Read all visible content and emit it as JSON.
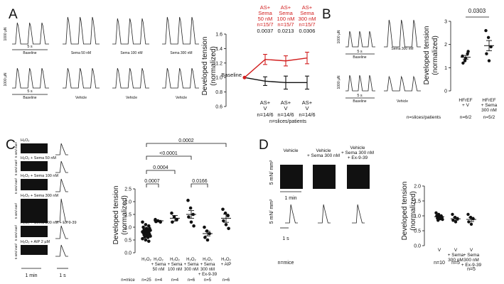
{
  "panels": {
    "A": {
      "label": "A",
      "scale_y": "1000 µN",
      "scale_x": "5 s",
      "row1_labels": [
        "Baseline",
        "Sema 50 nM",
        "Sema 100 nM",
        "Sema 300 nM"
      ],
      "row2_labels": [
        "Baseline",
        "Vehicle",
        "Vehicle",
        "Vehicle"
      ],
      "sema_group": {
        "line1": "AS+",
        "line2": "Sema"
      },
      "sema_doses": [
        "50 nM",
        "100 nM",
        "300 nM"
      ],
      "sema_n": [
        "n=15/7",
        "n=15/7",
        "n=15/7"
      ],
      "p_values": [
        "0.0037",
        "0.0213",
        "0.0306"
      ],
      "v_group": {
        "line1": "AS+",
        "line2": "V"
      },
      "v_n": [
        "n=14/6",
        "n=14/6",
        "n=14/6"
      ],
      "baseline_label": "Baseline",
      "footnote": "n=slices/patients",
      "ylabel_1": "Developed tension",
      "ylabel_2": "(normalized)",
      "yticks": [
        "0.6",
        "0.8",
        "1.0",
        "1.2",
        "1.4",
        "1.6"
      ]
    },
    "B": {
      "label": "B",
      "scale_y": "1000 µN",
      "scale_x": "5 s",
      "row1_labels": [
        "Baseline",
        "Sema 300 nM"
      ],
      "row2_labels": [
        "Baseline",
        "Vehicle"
      ],
      "p_value": "0.0303",
      "ylabel_1": "Developed tension",
      "ylabel_2": "(normalized)",
      "yticks": [
        "0",
        "1",
        "2",
        "3"
      ],
      "xlabels": [
        {
          "l1": "HFrEF",
          "l2": "+ V",
          "l3": ""
        },
        {
          "l1": "HFrEF",
          "l2": "+ Sema",
          "l3": "300 nM"
        }
      ],
      "footer": "n=slices/patients",
      "n": [
        "n=6/2",
        "n=5/2"
      ]
    },
    "C": {
      "label": "C",
      "scale_y": "5 mN/ mm²",
      "scale_x_left": "1 min",
      "scale_x_right": "1 s",
      "trace_labels": [
        "H₂O₂",
        "H₂O₂ + Sema 50 nM",
        "H₂O₂ + Sema 100 nM",
        "H₂O₂ + Sema 300 nM",
        "H₂O₂ + Sema 300 nM + Ex-9-39",
        "H₂O₂ + AIP 2 µM"
      ],
      "p_values": [
        "0.0002",
        "<0.0001",
        "0.0004",
        "0.0007",
        "0.0166"
      ],
      "ylabel_1": "Developed tension",
      "ylabel_2": "(normalized)",
      "yticks": [
        "0.0",
        "0.5",
        "1.0",
        "1.5",
        "2.0",
        "2.5"
      ],
      "xlabels": [
        {
          "l1": "H₂O₂",
          "l2": "",
          "l3": "",
          "l4": ""
        },
        {
          "l1": "H₂O₂",
          "l2": "+ Sema",
          "l3": "50 nM",
          "l4": ""
        },
        {
          "l1": "H₂O₂",
          "l2": "+ Sema",
          "l3": "100 nM",
          "l4": ""
        },
        {
          "l1": "H₂O₂",
          "l2": "+ Sema",
          "l3": "300 nM",
          "l4": ""
        },
        {
          "l1": "H₂O₂",
          "l2": "+ Sema",
          "l3": "300 nM",
          "l4": "+ Ex-9-39"
        },
        {
          "l1": "H₂O₂",
          "l2": "+ AIP",
          "l3": "",
          "l4": ""
        }
      ],
      "n_prefix": "n=mice",
      "n": [
        "n=25",
        "n=4",
        "n=4",
        "n=6",
        "n=5",
        "n=6"
      ]
    },
    "D": {
      "label": "D",
      "trace_headers": [
        {
          "l1": "Vehicle",
          "l2": "",
          "l3": ""
        },
        {
          "l1": "Vehicle",
          "l2": "+ Sema 300 nM",
          "l3": ""
        },
        {
          "l1": "Vehicle",
          "l2": "+ Sema 300 nM",
          "l3": "+ Ex-9-39"
        }
      ],
      "scale_y_top": "5 mN/ mm²",
      "scale_y_bottom": "5 mN/ mm²",
      "scale_x_top": "1 min",
      "scale_x_bottom": "1 s",
      "ylabel_1": "Developed tension",
      "ylabel_2": "(normalized)",
      "yticks": [
        "0.0",
        "0.5",
        "1.0",
        "1.5",
        "2.0"
      ],
      "xlabels": [
        {
          "l1": "V",
          "l2": "",
          "l3": "",
          "l4": ""
        },
        {
          "l1": "V",
          "l2": "+ Sema",
          "l3": "300 nM",
          "l4": ""
        },
        {
          "l1": "V",
          "l2": "+ Sema",
          "l3": "300 nM",
          "l4": "+ Ex-9-39"
        }
      ],
      "n_prefix": "n=mice",
      "n": [
        "n=10",
        "n=5",
        "n=5"
      ]
    }
  },
  "chart_data": [
    {
      "panel": "A",
      "type": "line",
      "x": [
        "Baseline",
        "50 nM",
        "100 nM",
        "300 nM"
      ],
      "ylim": [
        0.6,
        1.6
      ],
      "series": [
        {
          "values": [
            1.0,
            1.25,
            1.23,
            1.27
          ],
          "errors": [
            0,
            0.07,
            0.07,
            0.08
          ],
          "color": "#d21f1f"
        },
        {
          "values": [
            1.0,
            0.95,
            0.93,
            0.93
          ],
          "errors": [
            0,
            0.06,
            0.09,
            0.09
          ],
          "color": "#111111"
        }
      ]
    },
    {
      "panel": "B",
      "type": "scatter",
      "categories": [
        "HFrEF + V",
        "HFrEF + Sema 300 nM"
      ],
      "ylim": [
        0,
        3
      ],
      "series": [
        {
          "points": [
            1.5,
            1.3,
            1.6,
            1.2,
            1.4,
            1.7
          ],
          "mean": 1.45,
          "sem": 0.08
        },
        {
          "points": [
            2.6,
            2.3,
            1.9,
            1.6,
            1.3
          ],
          "mean": 1.95,
          "sem": 0.22
        }
      ]
    },
    {
      "panel": "C",
      "type": "scatter",
      "categories": [
        "H₂O₂",
        "H₂O₂ + Sema 50 nM",
        "H₂O₂ + Sema 100 nM",
        "H₂O₂ + Sema 300 nM",
        "H₂O₂ + Sema 300 nM + Ex-9-39",
        "H₂O₂ + AIP"
      ],
      "ylim": [
        0,
        2.5
      ],
      "series": [
        {
          "points": [
            1.2,
            1.1,
            1.05,
            1.0,
            0.95,
            0.95,
            0.9,
            0.9,
            0.88,
            0.85,
            0.85,
            0.82,
            0.8,
            0.8,
            0.78,
            0.75,
            0.72,
            0.7,
            0.68,
            0.65,
            0.62,
            0.6,
            0.55,
            0.5,
            0.45
          ],
          "mean": 0.85,
          "sem": 0.04
        },
        {
          "points": [
            1.3,
            1.25,
            1.2,
            1.22
          ],
          "mean": 1.25,
          "sem": 0.02
        },
        {
          "points": [
            1.55,
            1.4,
            1.3,
            1.2
          ],
          "mean": 1.35,
          "sem": 0.11
        },
        {
          "points": [
            2.05,
            1.75,
            1.5,
            1.4,
            1.2,
            1.05
          ],
          "mean": 1.5,
          "sem": 0.15
        },
        {
          "points": [
            1.0,
            0.85,
            0.75,
            0.6,
            0.5
          ],
          "mean": 0.75,
          "sem": 0.09
        },
        {
          "points": [
            1.7,
            1.55,
            1.45,
            1.25,
            1.1,
            0.95
          ],
          "mean": 1.35,
          "sem": 0.16
        }
      ]
    },
    {
      "panel": "D",
      "type": "scatter",
      "categories": [
        "V",
        "V + Sema 300 nM",
        "V + Sema 300 nM + Ex-9-39"
      ],
      "ylim": [
        0,
        2.0
      ],
      "series": [
        {
          "points": [
            1.1,
            1.05,
            1.0,
            1.0,
            0.98,
            0.95,
            0.92,
            0.9,
            0.88,
            0.85
          ],
          "mean": 0.97,
          "sem": 0.03
        },
        {
          "points": [
            1.05,
            0.95,
            0.9,
            0.85,
            0.8
          ],
          "mean": 0.9,
          "sem": 0.05
        },
        {
          "points": [
            1.05,
            0.95,
            0.9,
            0.8,
            0.72
          ],
          "mean": 0.88,
          "sem": 0.07
        }
      ]
    }
  ]
}
